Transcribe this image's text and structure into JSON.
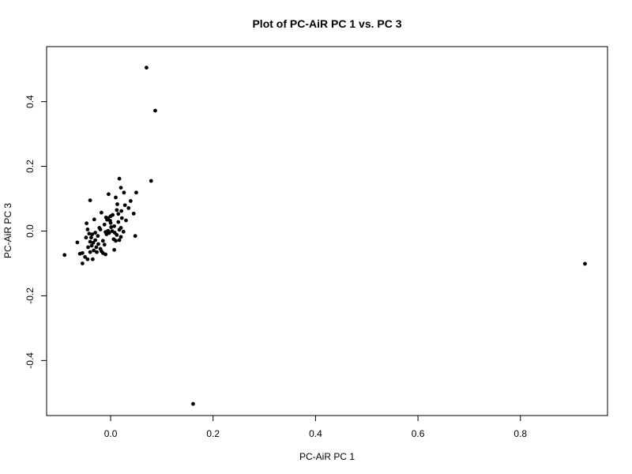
{
  "chart_data": {
    "type": "scatter",
    "title": "Plot of PC-AiR PC 1 vs. PC 3",
    "xlabel": "PC-AiR PC 1",
    "ylabel": "PC-AiR PC 3",
    "xlim": [
      -0.125,
      0.97
    ],
    "ylim": [
      -0.57,
      0.57
    ],
    "x_ticks": [
      0.0,
      0.2,
      0.4,
      0.6,
      0.8
    ],
    "x_tick_labels": [
      "0.0",
      "0.2",
      "0.4",
      "0.6",
      "0.8"
    ],
    "y_ticks": [
      -0.4,
      -0.2,
      0.0,
      0.2,
      0.4
    ],
    "y_tick_labels": [
      "-0.4",
      "-0.2",
      "0.0",
      "0.2",
      "0.4"
    ],
    "grid": false,
    "legend": "none",
    "point_color": "#000000",
    "points": [
      [
        0.07,
        0.505
      ],
      [
        0.087,
        0.372
      ],
      [
        0.079,
        0.155
      ],
      [
        0.926,
        -0.101
      ],
      [
        0.161,
        -0.534
      ],
      [
        0.017,
        0.162
      ],
      [
        0.02,
        0.134
      ],
      [
        0.026,
        0.119
      ],
      [
        0.05,
        0.119
      ],
      [
        -0.004,
        0.114
      ],
      [
        0.01,
        0.104
      ],
      [
        -0.04,
        0.095
      ],
      [
        0.039,
        0.093
      ],
      [
        0.013,
        0.083
      ],
      [
        0.035,
        0.071
      ],
      [
        0.021,
        0.062
      ],
      [
        -0.018,
        0.057
      ],
      [
        0.045,
        0.054
      ],
      [
        0.004,
        0.05
      ],
      [
        0.015,
        0.053
      ],
      [
        0.0,
        0.046
      ],
      [
        -0.009,
        0.042
      ],
      [
        0.022,
        0.04
      ],
      [
        -0.007,
        0.035
      ],
      [
        -0.032,
        0.036
      ],
      [
        0.03,
        0.033
      ],
      [
        -0.001,
        0.032
      ],
      [
        0.015,
        0.028
      ],
      [
        -0.047,
        0.024
      ],
      [
        -0.012,
        0.02
      ],
      [
        0.007,
        0.015
      ],
      [
        0.001,
        0.012
      ],
      [
        -0.022,
        0.01
      ],
      [
        -0.045,
        0.005
      ],
      [
        0.017,
        0.004
      ],
      [
        -0.005,
        0.001
      ],
      [
        0.025,
        -0.002
      ],
      [
        -0.01,
        -0.003
      ],
      [
        -0.03,
        -0.005
      ],
      [
        -0.003,
        -0.006
      ],
      [
        -0.042,
        -0.008
      ],
      [
        0.048,
        -0.015
      ],
      [
        0.012,
        -0.012
      ],
      [
        -0.025,
        -0.015
      ],
      [
        -0.048,
        -0.02
      ],
      [
        0.02,
        -0.018
      ],
      [
        -0.038,
        -0.02
      ],
      [
        0.006,
        -0.025
      ],
      [
        -0.065,
        -0.035
      ],
      [
        -0.03,
        -0.028
      ],
      [
        0.017,
        -0.028
      ],
      [
        -0.015,
        -0.03
      ],
      [
        -0.034,
        -0.036
      ],
      [
        -0.04,
        -0.033
      ],
      [
        -0.024,
        -0.04
      ],
      [
        -0.012,
        -0.042
      ],
      [
        -0.037,
        -0.045
      ],
      [
        -0.044,
        -0.05
      ],
      [
        -0.028,
        -0.05
      ],
      [
        -0.02,
        -0.055
      ],
      [
        -0.033,
        -0.06
      ],
      [
        0.007,
        -0.058
      ],
      [
        -0.018,
        -0.062
      ],
      [
        -0.04,
        -0.065
      ],
      [
        -0.015,
        -0.068
      ],
      [
        -0.027,
        -0.065
      ],
      [
        -0.055,
        -0.068
      ],
      [
        -0.01,
        -0.072
      ],
      [
        -0.05,
        -0.08
      ],
      [
        -0.09,
        -0.074
      ],
      [
        -0.035,
        -0.087
      ],
      [
        -0.045,
        -0.087
      ],
      [
        -0.055,
        -0.1
      ],
      [
        -0.06,
        -0.07
      ],
      [
        0.01,
        -0.03
      ],
      [
        -0.02,
        0.005
      ],
      [
        0.003,
        0.0
      ],
      [
        -0.008,
        -0.01
      ],
      [
        0.0,
        0.025
      ],
      [
        -0.005,
        0.04
      ],
      [
        0.008,
        -0.005
      ],
      [
        0.012,
        0.065
      ],
      [
        0.028,
        0.08
      ],
      [
        -0.036,
        -0.01
      ],
      [
        0.02,
        0.01
      ]
    ]
  }
}
